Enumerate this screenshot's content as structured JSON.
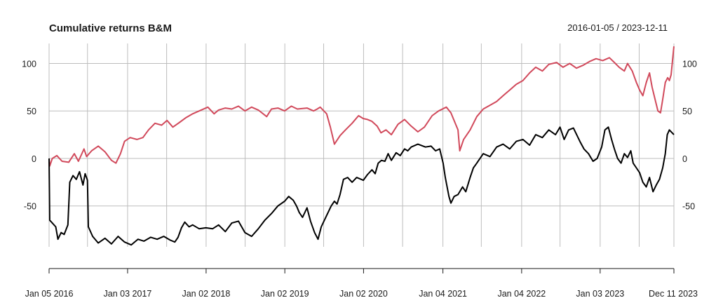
{
  "chart_data": {
    "type": "line",
    "title": "Cumulative returns B&M",
    "date_range": "2016-01-05 / 2023-12-11",
    "xlabel": "",
    "ylabel": "",
    "x_ticks": [
      {
        "date": "2016-01-05",
        "label": "Jan 05 2016"
      },
      {
        "date": "2017-01-03",
        "label": "Jan 03 2017"
      },
      {
        "date": "2018-01-02",
        "label": "Jan 02 2018"
      },
      {
        "date": "2019-01-02",
        "label": "Jan 02 2019"
      },
      {
        "date": "2020-01-02",
        "label": "Jan 02 2020"
      },
      {
        "date": "2021-01-04",
        "label": "Jan 04 2021"
      },
      {
        "date": "2022-01-04",
        "label": "Jan 04 2022"
      },
      {
        "date": "2023-01-03",
        "label": "Jan 03 2023"
      },
      {
        "date": "2023-12-11",
        "label": "Dec 11 2023"
      }
    ],
    "minor_grid_dates": [
      "2016-07-01",
      "2017-07-03",
      "2018-07-02",
      "2019-07-01",
      "2020-07-01",
      "2021-07-01",
      "2022-07-01",
      "2023-07-03"
    ],
    "y_ticks": [
      100,
      50,
      0,
      -50
    ],
    "y_tick_labels": [
      "100",
      "50",
      "0",
      "-50"
    ],
    "ylim": [
      -93,
      121
    ],
    "grid": true,
    "colors": {
      "series_1": "#d1495b",
      "series_2": "#000000",
      "grid": "#bdbdbd"
    },
    "series": [
      {
        "color": "#d1495b",
        "points": [
          [
            "2016-01-05",
            0
          ],
          [
            "2016-01-08",
            -8
          ],
          [
            "2016-01-20",
            0
          ],
          [
            "2016-02-10",
            3
          ],
          [
            "2016-03-05",
            -3
          ],
          [
            "2016-04-05",
            -4
          ],
          [
            "2016-05-01",
            5
          ],
          [
            "2016-05-20",
            -3
          ],
          [
            "2016-06-15",
            10
          ],
          [
            "2016-06-27",
            2
          ],
          [
            "2016-07-20",
            8
          ],
          [
            "2016-08-20",
            13
          ],
          [
            "2016-09-20",
            7
          ],
          [
            "2016-10-20",
            -2
          ],
          [
            "2016-11-10",
            -5
          ],
          [
            "2016-12-01",
            5
          ],
          [
            "2016-12-20",
            18
          ],
          [
            "2017-01-15",
            22
          ],
          [
            "2017-02-15",
            20
          ],
          [
            "2017-03-15",
            22
          ],
          [
            "2017-04-10",
            30
          ],
          [
            "2017-05-10",
            37
          ],
          [
            "2017-06-10",
            35
          ],
          [
            "2017-07-05",
            40
          ],
          [
            "2017-08-01",
            33
          ],
          [
            "2017-09-01",
            38
          ],
          [
            "2017-10-01",
            43
          ],
          [
            "2017-11-01",
            47
          ],
          [
            "2017-12-01",
            50
          ],
          [
            "2018-01-10",
            54
          ],
          [
            "2018-02-08",
            47
          ],
          [
            "2018-03-01",
            51
          ],
          [
            "2018-04-01",
            53
          ],
          [
            "2018-05-01",
            52
          ],
          [
            "2018-06-01",
            55
          ],
          [
            "2018-07-01",
            50
          ],
          [
            "2018-08-01",
            54
          ],
          [
            "2018-09-01",
            51
          ],
          [
            "2018-10-10",
            44
          ],
          [
            "2018-11-01",
            52
          ],
          [
            "2018-12-01",
            53
          ],
          [
            "2019-01-01",
            50
          ],
          [
            "2019-02-01",
            55
          ],
          [
            "2019-03-01",
            52
          ],
          [
            "2019-04-15",
            53
          ],
          [
            "2019-05-15",
            50
          ],
          [
            "2019-06-01",
            52
          ],
          [
            "2019-06-15",
            54
          ],
          [
            "2019-07-15",
            47
          ],
          [
            "2019-08-01",
            33
          ],
          [
            "2019-08-20",
            15
          ],
          [
            "2019-09-15",
            24
          ],
          [
            "2019-10-10",
            30
          ],
          [
            "2019-11-10",
            37
          ],
          [
            "2019-12-10",
            45
          ],
          [
            "2020-01-01",
            42
          ],
          [
            "2020-01-20",
            41
          ],
          [
            "2020-02-10",
            39
          ],
          [
            "2020-03-05",
            34
          ],
          [
            "2020-03-23",
            27
          ],
          [
            "2020-04-15",
            30
          ],
          [
            "2020-05-10",
            25
          ],
          [
            "2020-06-10",
            36
          ],
          [
            "2020-07-10",
            41
          ],
          [
            "2020-08-10",
            34
          ],
          [
            "2020-09-10",
            28
          ],
          [
            "2020-10-10",
            33
          ],
          [
            "2020-11-15",
            45
          ],
          [
            "2020-12-15",
            50
          ],
          [
            "2021-01-20",
            54
          ],
          [
            "2021-02-10",
            48
          ],
          [
            "2021-03-15",
            30
          ],
          [
            "2021-03-23",
            8
          ],
          [
            "2021-04-10",
            20
          ],
          [
            "2021-05-10",
            30
          ],
          [
            "2021-06-10",
            44
          ],
          [
            "2021-07-10",
            52
          ],
          [
            "2021-08-10",
            56
          ],
          [
            "2021-09-10",
            60
          ],
          [
            "2021-10-10",
            66
          ],
          [
            "2021-11-10",
            72
          ],
          [
            "2021-12-10",
            78
          ],
          [
            "2022-01-10",
            82
          ],
          [
            "2022-02-10",
            90
          ],
          [
            "2022-03-10",
            96
          ],
          [
            "2022-04-10",
            92
          ],
          [
            "2022-05-10",
            99
          ],
          [
            "2022-06-15",
            101
          ],
          [
            "2022-07-15",
            96
          ],
          [
            "2022-08-15",
            100
          ],
          [
            "2022-09-15",
            95
          ],
          [
            "2022-10-15",
            98
          ],
          [
            "2022-11-15",
            102
          ],
          [
            "2022-12-15",
            105
          ],
          [
            "2023-01-15",
            103
          ],
          [
            "2023-02-15",
            106
          ],
          [
            "2023-03-10",
            101
          ],
          [
            "2023-04-01",
            96
          ],
          [
            "2023-04-25",
            92
          ],
          [
            "2023-05-10",
            100
          ],
          [
            "2023-06-01",
            92
          ],
          [
            "2023-06-20",
            80
          ],
          [
            "2023-07-05",
            72
          ],
          [
            "2023-07-20",
            66
          ],
          [
            "2023-08-05",
            80
          ],
          [
            "2023-08-20",
            90
          ],
          [
            "2023-09-01",
            75
          ],
          [
            "2023-09-15",
            62
          ],
          [
            "2023-09-28",
            50
          ],
          [
            "2023-10-10",
            48
          ],
          [
            "2023-10-20",
            62
          ],
          [
            "2023-11-01",
            80
          ],
          [
            "2023-11-12",
            85
          ],
          [
            "2023-11-20",
            82
          ],
          [
            "2023-11-28",
            88
          ],
          [
            "2023-12-11",
            118
          ]
        ]
      },
      {
        "color": "#000000",
        "points": [
          [
            "2016-01-05",
            0
          ],
          [
            "2016-01-08",
            -65
          ],
          [
            "2016-01-20",
            -68
          ],
          [
            "2016-02-05",
            -72
          ],
          [
            "2016-02-15",
            -85
          ],
          [
            "2016-03-01",
            -78
          ],
          [
            "2016-03-15",
            -80
          ],
          [
            "2016-04-01",
            -70
          ],
          [
            "2016-04-10",
            -25
          ],
          [
            "2016-04-25",
            -18
          ],
          [
            "2016-05-10",
            -22
          ],
          [
            "2016-05-25",
            -14
          ],
          [
            "2016-06-10",
            -28
          ],
          [
            "2016-06-20",
            -16
          ],
          [
            "2016-07-01",
            -23
          ],
          [
            "2016-07-05",
            -72
          ],
          [
            "2016-07-25",
            -82
          ],
          [
            "2016-08-20",
            -89
          ],
          [
            "2016-09-20",
            -84
          ],
          [
            "2016-10-20",
            -90
          ],
          [
            "2016-11-20",
            -82
          ],
          [
            "2016-12-20",
            -88
          ],
          [
            "2017-01-20",
            -91
          ],
          [
            "2017-02-20",
            -85
          ],
          [
            "2017-03-20",
            -87
          ],
          [
            "2017-04-20",
            -83
          ],
          [
            "2017-05-20",
            -85
          ],
          [
            "2017-06-20",
            -82
          ],
          [
            "2017-07-20",
            -86
          ],
          [
            "2017-08-10",
            -88
          ],
          [
            "2017-08-25",
            -83
          ],
          [
            "2017-09-10",
            -73
          ],
          [
            "2017-09-25",
            -67
          ],
          [
            "2017-10-15",
            -72
          ],
          [
            "2017-11-01",
            -70
          ],
          [
            "2017-12-01",
            -74
          ],
          [
            "2018-01-01",
            -73
          ],
          [
            "2018-02-01",
            -74
          ],
          [
            "2018-03-01",
            -70
          ],
          [
            "2018-04-01",
            -77
          ],
          [
            "2018-05-01",
            -68
          ],
          [
            "2018-06-01",
            -66
          ],
          [
            "2018-07-01",
            -78
          ],
          [
            "2018-08-01",
            -82
          ],
          [
            "2018-09-01",
            -74
          ],
          [
            "2018-10-01",
            -65
          ],
          [
            "2018-11-01",
            -58
          ],
          [
            "2018-12-01",
            -50
          ],
          [
            "2019-01-01",
            -45
          ],
          [
            "2019-01-20",
            -40
          ],
          [
            "2019-02-10",
            -44
          ],
          [
            "2019-02-25",
            -50
          ],
          [
            "2019-03-10",
            -57
          ],
          [
            "2019-03-25",
            -62
          ],
          [
            "2019-04-15",
            -52
          ],
          [
            "2019-05-01",
            -66
          ],
          [
            "2019-05-20",
            -78
          ],
          [
            "2019-06-05",
            -85
          ],
          [
            "2019-06-20",
            -72
          ],
          [
            "2019-07-15",
            -60
          ],
          [
            "2019-08-05",
            -50
          ],
          [
            "2019-08-20",
            -45
          ],
          [
            "2019-09-01",
            -48
          ],
          [
            "2019-09-15",
            -38
          ],
          [
            "2019-10-01",
            -22
          ],
          [
            "2019-10-20",
            -20
          ],
          [
            "2019-11-10",
            -25
          ],
          [
            "2019-12-01",
            -20
          ],
          [
            "2020-01-01",
            -23
          ],
          [
            "2020-01-20",
            -17
          ],
          [
            "2020-02-10",
            -12
          ],
          [
            "2020-02-25",
            -16
          ],
          [
            "2020-03-10",
            -5
          ],
          [
            "2020-03-25",
            -2
          ],
          [
            "2020-04-10",
            -3
          ],
          [
            "2020-04-25",
            5
          ],
          [
            "2020-05-10",
            -2
          ],
          [
            "2020-06-01",
            6
          ],
          [
            "2020-06-20",
            3
          ],
          [
            "2020-07-10",
            10
          ],
          [
            "2020-07-25",
            8
          ],
          [
            "2020-08-10",
            12
          ],
          [
            "2020-09-10",
            15
          ],
          [
            "2020-10-15",
            12
          ],
          [
            "2020-11-10",
            13
          ],
          [
            "2020-12-01",
            8
          ],
          [
            "2020-12-20",
            10
          ],
          [
            "2021-01-05",
            -5
          ],
          [
            "2021-01-15",
            -20
          ],
          [
            "2021-02-01",
            -40
          ],
          [
            "2021-02-10",
            -47
          ],
          [
            "2021-02-25",
            -40
          ],
          [
            "2021-03-15",
            -38
          ],
          [
            "2021-04-05",
            -30
          ],
          [
            "2021-04-20",
            -35
          ],
          [
            "2021-05-10",
            -20
          ],
          [
            "2021-05-25",
            -10
          ],
          [
            "2021-06-10",
            -5
          ],
          [
            "2021-07-10",
            5
          ],
          [
            "2021-08-10",
            2
          ],
          [
            "2021-09-10",
            12
          ],
          [
            "2021-10-10",
            15
          ],
          [
            "2021-11-10",
            10
          ],
          [
            "2021-12-10",
            18
          ],
          [
            "2022-01-10",
            20
          ],
          [
            "2022-02-10",
            14
          ],
          [
            "2022-03-10",
            25
          ],
          [
            "2022-04-10",
            22
          ],
          [
            "2022-05-10",
            30
          ],
          [
            "2022-06-10",
            25
          ],
          [
            "2022-07-01",
            33
          ],
          [
            "2022-07-20",
            20
          ],
          [
            "2022-08-10",
            30
          ],
          [
            "2022-09-01",
            32
          ],
          [
            "2022-10-01",
            18
          ],
          [
            "2022-10-20",
            10
          ],
          [
            "2022-11-10",
            5
          ],
          [
            "2022-12-01",
            -3
          ],
          [
            "2022-12-20",
            0
          ],
          [
            "2023-01-10",
            12
          ],
          [
            "2023-01-25",
            30
          ],
          [
            "2023-02-10",
            33
          ],
          [
            "2023-02-25",
            20
          ],
          [
            "2023-03-10",
            10
          ],
          [
            "2023-03-25",
            0
          ],
          [
            "2023-04-10",
            -5
          ],
          [
            "2023-04-25",
            5
          ],
          [
            "2023-05-10",
            1
          ],
          [
            "2023-05-25",
            8
          ],
          [
            "2023-06-05",
            -5
          ],
          [
            "2023-06-20",
            -10
          ],
          [
            "2023-07-05",
            -15
          ],
          [
            "2023-07-20",
            -25
          ],
          [
            "2023-08-05",
            -30
          ],
          [
            "2023-08-20",
            -20
          ],
          [
            "2023-09-05",
            -35
          ],
          [
            "2023-09-20",
            -28
          ],
          [
            "2023-10-05",
            -22
          ],
          [
            "2023-10-20",
            -10
          ],
          [
            "2023-11-01",
            5
          ],
          [
            "2023-11-10",
            25
          ],
          [
            "2023-11-20",
            30
          ],
          [
            "2023-12-11",
            25
          ]
        ]
      }
    ]
  }
}
